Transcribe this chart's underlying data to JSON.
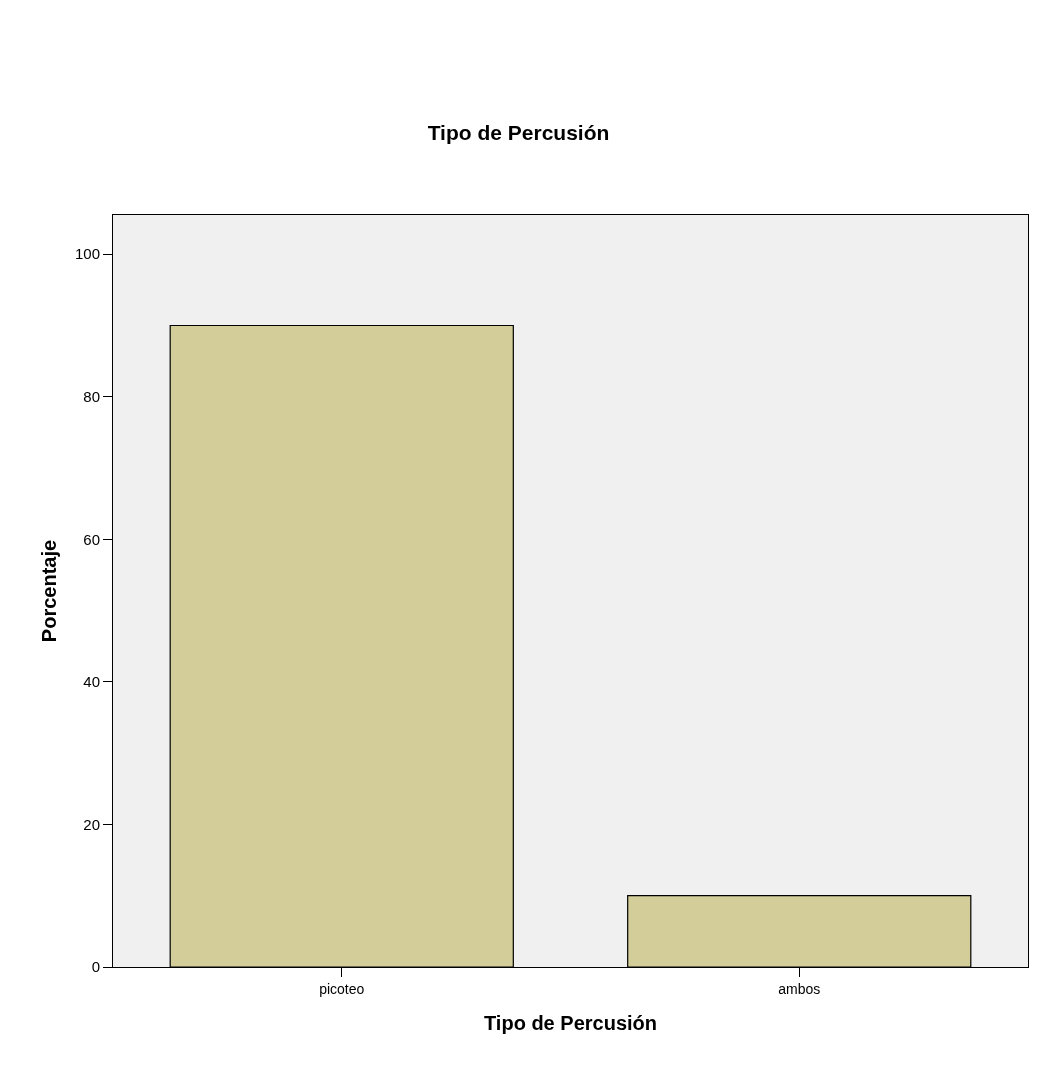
{
  "chart_data": {
    "type": "bar",
    "title": "Tipo de Percusión",
    "xlabel": "Tipo de Percusión",
    "ylabel": "Porcentaje",
    "categories": [
      "picoteo",
      "ambos"
    ],
    "values": [
      90,
      10
    ],
    "color": "#d3ce99",
    "ylim": [
      0,
      105.5
    ],
    "yticks": [
      0,
      20,
      40,
      60,
      80,
      100
    ],
    "grid": false,
    "legend": false
  }
}
